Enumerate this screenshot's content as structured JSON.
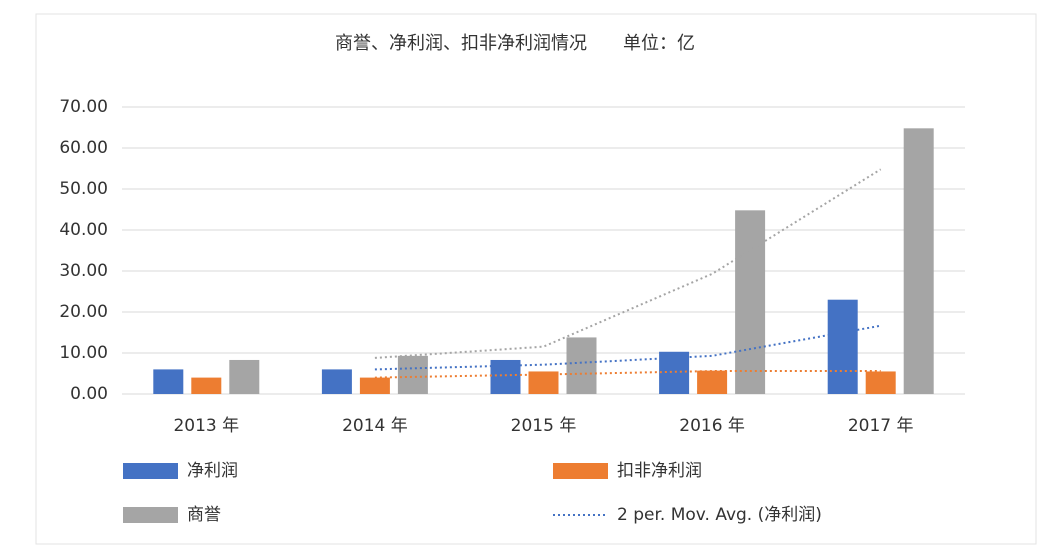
{
  "chart_data": {
    "type": "bar",
    "title": "商誉、净利润、扣非净利润情况　　单位：亿",
    "categories": [
      "2013 年",
      "2014 年",
      "2015 年",
      "2016 年",
      "2017 年"
    ],
    "series": [
      {
        "name": "净利润",
        "color": "#4472c4",
        "values": [
          6.0,
          6.0,
          8.3,
          10.3,
          23.0
        ]
      },
      {
        "name": "扣非净利润",
        "color": "#ed7d31",
        "values": [
          4.0,
          4.0,
          5.5,
          5.7,
          5.5
        ]
      },
      {
        "name": "商誉",
        "color": "#a5a5a5",
        "values": [
          8.3,
          9.3,
          13.8,
          44.8,
          64.8
        ]
      }
    ],
    "trendlines": [
      {
        "name": "2 per. Mov. Avg. (净利润)",
        "color": "#4472c4",
        "values": [
          null,
          6.0,
          7.15,
          9.3,
          16.65
        ]
      },
      {
        "color": "#ed7d31",
        "values": [
          null,
          4.0,
          4.75,
          5.6,
          5.6
        ]
      },
      {
        "color": "#a5a5a5",
        "values": [
          null,
          8.8,
          11.55,
          29.3,
          54.8
        ]
      }
    ],
    "ylim": [
      0,
      70
    ],
    "yticks": [
      {
        "value": 0,
        "label": "0.00"
      },
      {
        "value": 10,
        "label": "10.00"
      },
      {
        "value": 20,
        "label": "20.00"
      },
      {
        "value": 30,
        "label": "30.00"
      },
      {
        "value": 40,
        "label": "40.00"
      },
      {
        "value": 50,
        "label": "50.00"
      },
      {
        "value": 60,
        "label": "60.00"
      },
      {
        "value": 70,
        "label": "70.00"
      }
    ],
    "grid": true
  }
}
